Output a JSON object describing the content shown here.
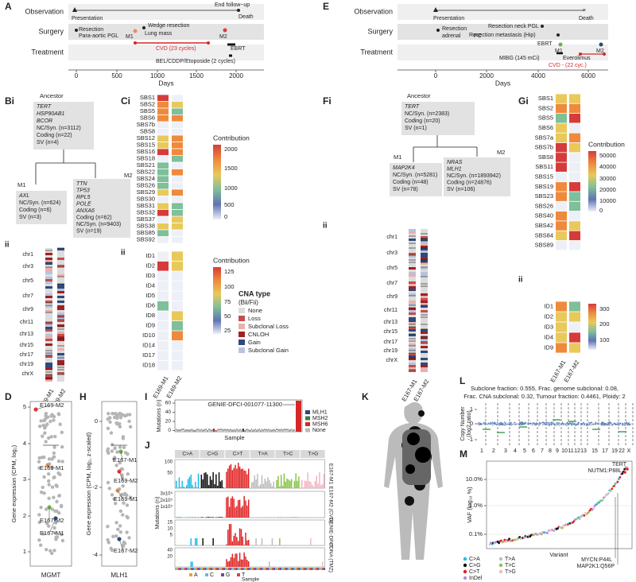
{
  "A": {
    "label": "A",
    "rows": [
      "Observation",
      "Surgery",
      "Treatment"
    ],
    "events": [
      "Presentation",
      "End follow−up",
      "Death",
      "Resection",
      "Para-aortic PGL",
      "M1",
      "Wedge resection",
      "Lung mass",
      "M2",
      "CVD (23 cycles)",
      "EBRT",
      "BEL/CDDP/Etoposide (2 cycles)"
    ],
    "xticks": [
      "0",
      "500",
      "1000",
      "1500",
      "2000"
    ],
    "xlabel": "Days"
  },
  "E": {
    "label": "E",
    "rows": [
      "Observation",
      "Surgery",
      "Treatment"
    ],
    "events": [
      "Presentation",
      "Death",
      "Resection",
      "adrenal",
      "PC",
      "Resection neck PGL",
      "Resection metastasis (Hip)",
      "EBRT",
      "M1",
      "M2",
      "MIBG (145 mCi)",
      "Everolimus",
      "CVD - (22 cyc.)"
    ],
    "xticks": [
      "0",
      "2000",
      "4000",
      "6000"
    ],
    "xlabel": "Days"
  },
  "B": {
    "label_i": "Bi",
    "label_ii": "ii",
    "ancestor": {
      "title": "Ancestor",
      "lines": [
        "TERT",
        "HSP90AB1",
        "BCOR",
        "NC/Syn. (n=3112)",
        "Coding (n=22)",
        "SV (n=4)"
      ]
    },
    "m1": {
      "title": "M1",
      "lines": [
        "AXL",
        "NC/Syn. (n=624)",
        "Coding (n=6)",
        "SV (n=3)"
      ]
    },
    "m2": {
      "title": "M2",
      "lines": [
        "TTN",
        "TP53",
        "RPL5",
        "POLE",
        "ANXA6",
        "Coding (n=62)",
        "NC/Syn. (n=9403)",
        "SV (n=19)"
      ]
    },
    "chromosomes": [
      "chr1",
      "chr3",
      "chr5",
      "chr7",
      "chr9",
      "chr11",
      "chr13",
      "chr15",
      "chr17",
      "chr19",
      "chrX"
    ],
    "samples": [
      "E169-M1",
      "E169-M2"
    ]
  },
  "C": {
    "label_i": "Ci",
    "label_ii": "ii",
    "signatures": [
      "SBS1",
      "SBS2",
      "SBS5",
      "SBS6",
      "SBS7b",
      "SBS8",
      "SBS12",
      "SBS15",
      "SBS16",
      "SBS18",
      "SBS21",
      "SBS22",
      "SBS24",
      "SBS26",
      "SBS29",
      "SBS30",
      "SBS31",
      "SBS32",
      "SBS37",
      "SBS38",
      "SBS85",
      "SBS92"
    ],
    "sbs_legend_title": "Contribution",
    "sbs_legend_ticks": [
      "2000",
      "1500",
      "1000",
      "500",
      "0"
    ],
    "indels": [
      "ID1",
      "ID2",
      "ID3",
      "ID4",
      "ID5",
      "ID6",
      "ID8",
      "ID9",
      "ID10",
      "ID14",
      "ID17",
      "ID18"
    ],
    "id_legend_title": "Contribution",
    "id_legend_ticks": [
      "125",
      "100",
      "75",
      "50",
      "25"
    ],
    "samples": [
      "E169-M1",
      "E169-M2"
    ]
  },
  "cna_legend": {
    "title": "CNA type",
    "subtitle": "(Bii/Fii)",
    "items": [
      "None",
      "Loss",
      "Subclonal Loss",
      "CNLOH",
      "Gain",
      "Subclonal Gain"
    ]
  },
  "F": {
    "label_i": "Fi",
    "label_ii": "ii",
    "ancestor": {
      "title": "Ancestor",
      "lines": [
        "TERT",
        "NC/Syn. (n=2383)",
        "Coding (n=20)",
        "SV (n=1)"
      ]
    },
    "m1": {
      "title": "M1",
      "lines": [
        "MAP2K4",
        "NC/Syn. (n=5281)",
        "Coding (n=48)",
        "SV (n=78)"
      ]
    },
    "m2": {
      "title": "M2",
      "lines": [
        "NRAS",
        "MLH1",
        "NC/Syn. (n=1893942)",
        "Coding (n=24876)",
        "SV (n=106)"
      ]
    },
    "chromosomes": [
      "chr1",
      "chr3",
      "chr5",
      "chr7",
      "chr9",
      "chr11",
      "chr13",
      "chr15",
      "chr17",
      "chr19",
      "chrX"
    ],
    "samples": [
      "E167-M1",
      "E167-M2"
    ]
  },
  "G": {
    "label_i": "Gi",
    "label_ii": "ii",
    "signatures": [
      "SBS1",
      "SBS2",
      "SBS5",
      "SBS6",
      "SBS7a",
      "SBS7b",
      "SBS8",
      "SBS11",
      "SBS15",
      "SBS19",
      "SBS23",
      "SBS26",
      "SBS40",
      "SBS42",
      "SBS84",
      "SBS89"
    ],
    "sbs_legend_title": "Contribution",
    "sbs_legend_ticks": [
      "50000",
      "40000",
      "30000",
      "20000",
      "10000",
      "0"
    ],
    "indels": [
      "ID1",
      "ID2",
      "ID3",
      "ID4",
      "ID9"
    ],
    "id_legend_ticks": [
      "300",
      "200",
      "100"
    ],
    "samples": [
      "E167-M1",
      "E167-M2"
    ]
  },
  "D": {
    "label": "D",
    "ylabel": "Gene expression (CPM, log₂)",
    "yticks": [
      "5",
      "4",
      "3",
      "2",
      "1"
    ],
    "points": [
      "E169-M2",
      "E169-M1",
      "E167-M2",
      "E167-M1"
    ],
    "xlabel": "MGMT"
  },
  "H": {
    "label": "H",
    "ylabel": "Gene expression (CPM, log₂, z-scaled)",
    "yticks": [
      "0",
      "-2",
      "-4"
    ],
    "points": [
      "E167-M1",
      "E169-M2",
      "E169-M1",
      "E167-M2"
    ],
    "xlabel": "MLH1"
  },
  "I": {
    "label": "I",
    "ylabel": "Mutations (n)",
    "yticks": [
      "60",
      "40",
      "20",
      "0"
    ],
    "annotation": "GENIE-DFCI-001077-11300",
    "xlabel": "Sample",
    "legend": [
      "MLH1",
      "MSH2",
      "MSH6",
      "None"
    ]
  },
  "J": {
    "label": "J",
    "ylabel": "Mutations (n)",
    "columns": [
      "C>A",
      "C>G",
      "C>T",
      "T>A",
      "T>C",
      "T>G"
    ],
    "rows": [
      "E167-M1",
      "E167-M2 (CVD)",
      "GENIE-DFCI",
      "cfDNA (TMZ)"
    ],
    "row_ticks": [
      [
        "100",
        "50"
      ],
      [
        "3x10⁵",
        "2x10⁵",
        "1x10⁵"
      ],
      [
        "15",
        "10",
        "5"
      ],
      [
        "40",
        "20"
      ]
    ],
    "xlabel": "Sample",
    "bases": [
      "A",
      "C",
      "G",
      "T"
    ]
  },
  "K": {
    "label": "K"
  },
  "L": {
    "label": "L",
    "summary": [
      "Subclone fraction: 0.555, Frac. genome subclonal: 0.08,",
      "Frac. CNA subclonal: 0.32, Tumour fraction: 0.4461, Ploidy: 2"
    ],
    "ylabel": [
      "Copy Number",
      "(log2 ratio)"
    ],
    "yticks": [
      "1",
      "0",
      "-1"
    ],
    "chromosomes": [
      "1",
      "2",
      "3",
      "4",
      "5",
      "6",
      "7",
      "8",
      "9",
      "10",
      "11",
      "12",
      "13",
      "15",
      "17",
      "19",
      "22",
      "X"
    ]
  },
  "M": {
    "label": "M",
    "ylabel": "VAF (log₁₀ %)",
    "yticks": [
      "10.0%",
      "1.0%",
      "0.1%"
    ],
    "xlabel": "Variant",
    "annotations": [
      "TERT",
      "NUTM1:P88L",
      "MYCN:P44L",
      "MAP2K1:Q56P"
    ],
    "legend": [
      "C>A",
      "C>G",
      "C>T",
      "InDel",
      "T>A",
      "T>C",
      "T>G"
    ]
  }
}
